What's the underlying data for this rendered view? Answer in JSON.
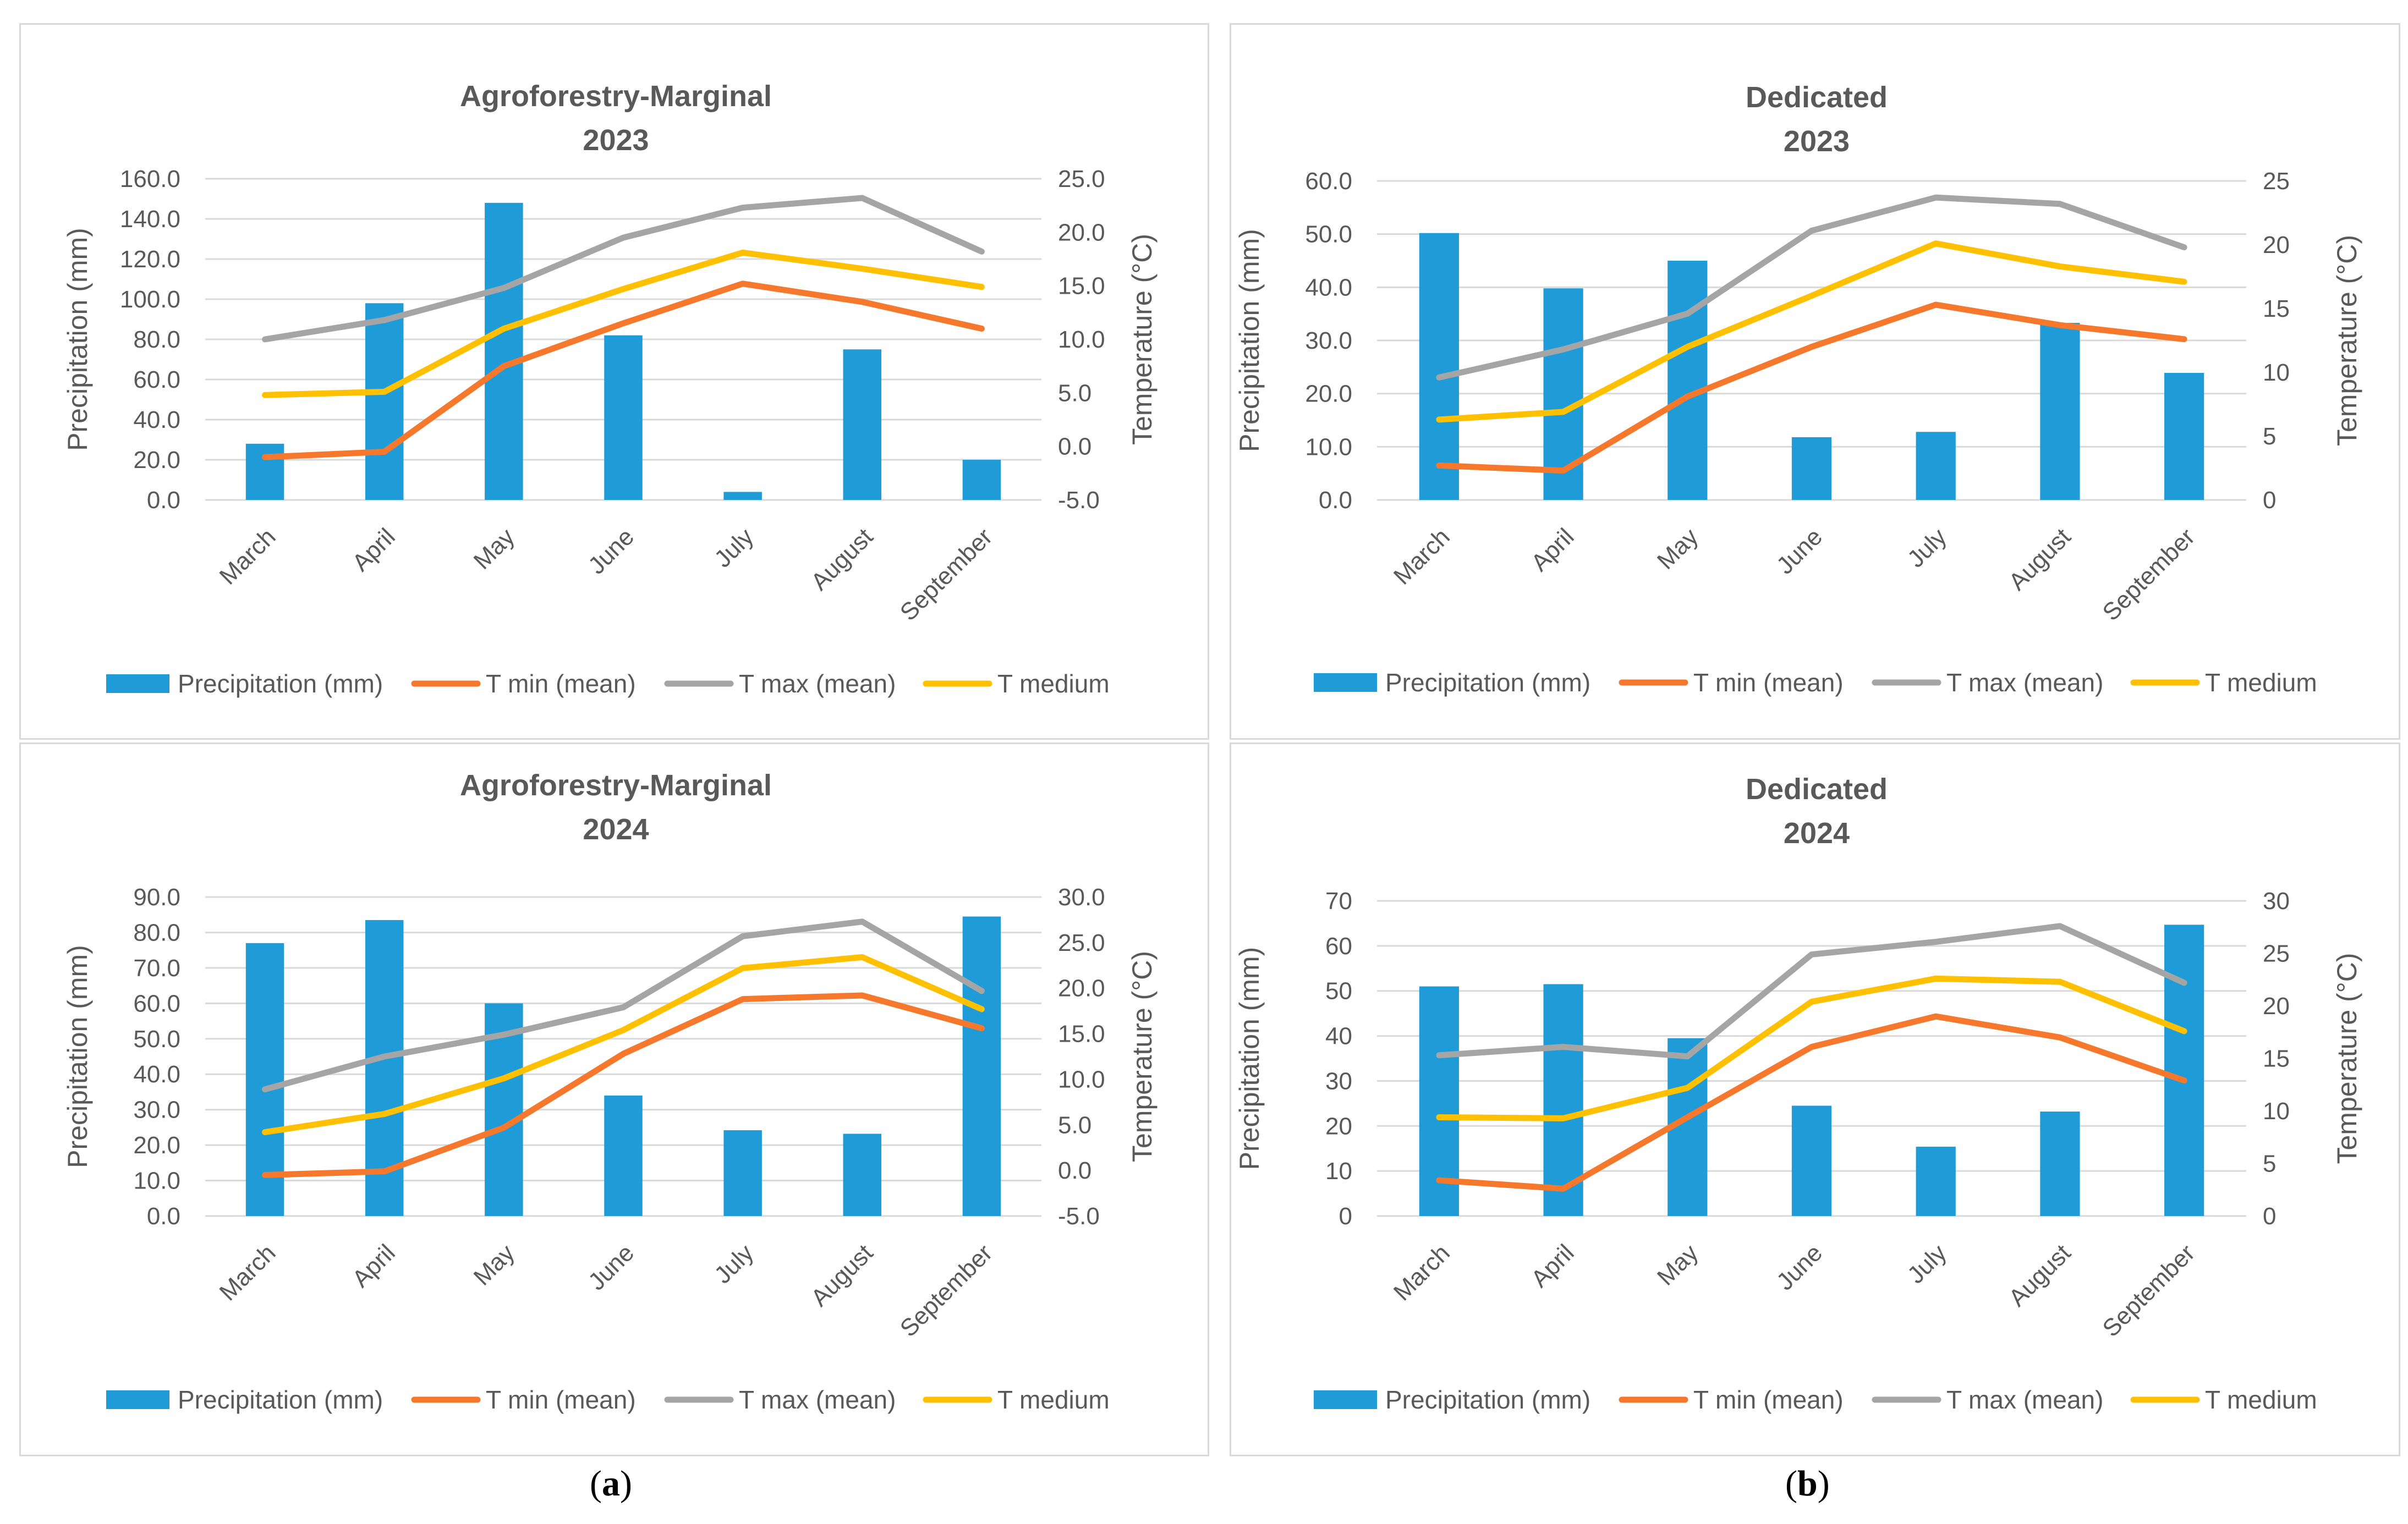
{
  "colors": {
    "precipitation": "#1f9bd7",
    "tmin": "#f5782d",
    "tmax": "#a5a5a5",
    "tmed": "#ffc000",
    "grid": "#d9d9d9",
    "text": "#595959"
  },
  "captions": {
    "a": "a",
    "b": "b"
  },
  "chart_data": [
    {
      "id": "agro-2023",
      "type": "bar+line",
      "title": "Agroforestry-Marginal",
      "subtitle": "2023",
      "categories": [
        "March",
        "April",
        "May",
        "June",
        "July",
        "August",
        "September"
      ],
      "ylabel": "Precipitation (mm)",
      "y2label": "Temperature (°C)",
      "ylim": [
        0,
        160
      ],
      "yticks": [
        "0.0",
        "20.0",
        "40.0",
        "60.0",
        "80.0",
        "100.0",
        "120.0",
        "140.0",
        "160.0"
      ],
      "y2lim": [
        -5,
        25
      ],
      "y2ticks": [
        "-5.0",
        "0.0",
        "5.0",
        "10.0",
        "15.0",
        "20.0",
        "25.0"
      ],
      "bars": {
        "name": "Precipitation (mm)",
        "values": [
          28,
          98,
          148,
          82,
          4,
          75,
          20
        ]
      },
      "series": [
        {
          "name": "T min (mean)",
          "key": "tmin",
          "values": [
            -1.0,
            -0.5,
            7.5,
            11.5,
            15.2,
            13.5,
            11.0
          ]
        },
        {
          "name": "T max (mean)",
          "key": "tmax",
          "values": [
            10.0,
            11.8,
            14.8,
            19.5,
            22.3,
            23.2,
            18.2
          ]
        },
        {
          "name": "T medium",
          "key": "tmed",
          "values": [
            4.8,
            5.1,
            11.0,
            14.7,
            18.1,
            16.6,
            14.9
          ]
        }
      ],
      "legend": "bottom"
    },
    {
      "id": "ded-2023",
      "type": "bar+line",
      "title": "Dedicated",
      "subtitle": "2023",
      "categories": [
        "March",
        "April",
        "May",
        "June",
        "July",
        "August",
        "September"
      ],
      "ylabel": "Precipitation (mm)",
      "y2label": "Temperature (°C)",
      "ylim": [
        0,
        60
      ],
      "yticks": [
        "0.0",
        "10.0",
        "20.0",
        "30.0",
        "40.0",
        "50.0",
        "60.0"
      ],
      "y2lim": [
        0,
        25
      ],
      "y2ticks": [
        "0",
        "5",
        "10",
        "15",
        "20",
        "25"
      ],
      "bars": {
        "name": "Precipitation (mm)",
        "values": [
          50.2,
          39.8,
          45.0,
          11.8,
          12.8,
          33.3,
          23.9
        ]
      },
      "series": [
        {
          "name": "T min (mean)",
          "key": "tmin",
          "values": [
            2.7,
            2.3,
            8.1,
            12.0,
            15.3,
            13.7,
            12.6
          ]
        },
        {
          "name": "T max (mean)",
          "key": "tmax",
          "values": [
            9.6,
            11.8,
            14.6,
            21.1,
            23.7,
            23.2,
            19.8
          ]
        },
        {
          "name": "T medium",
          "key": "tmed",
          "values": [
            6.3,
            6.9,
            12.0,
            16.0,
            20.1,
            18.3,
            17.1
          ]
        }
      ],
      "legend": "bottom"
    },
    {
      "id": "agro-2024",
      "type": "bar+line",
      "title": "Agroforestry-Marginal",
      "subtitle": "2024",
      "categories": [
        "March",
        "April",
        "May",
        "June",
        "July",
        "August",
        "September"
      ],
      "ylabel": "Precipitation (mm)",
      "y2label": "Temperature (°C)",
      "ylim": [
        0,
        90
      ],
      "yticks": [
        "0.0",
        "10.0",
        "20.0",
        "30.0",
        "40.0",
        "50.0",
        "60.0",
        "70.0",
        "80.0",
        "90.0"
      ],
      "y2lim": [
        -5,
        30
      ],
      "y2ticks": [
        "-5.0",
        "0.0",
        "5.0",
        "10.0",
        "15.0",
        "20.0",
        "25.0",
        "30.0"
      ],
      "bars": {
        "name": "Precipitation (mm)",
        "values": [
          77,
          83.5,
          60,
          34,
          24.2,
          23.2,
          84.5
        ]
      },
      "series": [
        {
          "name": "T min (mean)",
          "key": "tmin",
          "values": [
            -0.5,
            -0.1,
            4.7,
            12.8,
            18.8,
            19.2,
            15.6
          ]
        },
        {
          "name": "T max (mean)",
          "key": "tmax",
          "values": [
            8.9,
            12.5,
            14.9,
            17.9,
            25.7,
            27.3,
            19.7
          ]
        },
        {
          "name": "T medium",
          "key": "tmed",
          "values": [
            4.2,
            6.2,
            10.1,
            15.4,
            22.2,
            23.4,
            17.7
          ]
        }
      ],
      "legend": "bottom"
    },
    {
      "id": "ded-2024",
      "type": "bar+line",
      "title": "Dedicated",
      "subtitle": "2024",
      "categories": [
        "March",
        "April",
        "May",
        "June",
        "July",
        "August",
        "September"
      ],
      "ylabel": "Precipitation (mm)",
      "y2label": "Temperature (°C)",
      "ylim": [
        0,
        70
      ],
      "yticks": [
        "0",
        "10",
        "20",
        "30",
        "40",
        "50",
        "60",
        "70"
      ],
      "y2lim": [
        0,
        30
      ],
      "y2ticks": [
        "0",
        "5",
        "10",
        "15",
        "20",
        "25",
        "30"
      ],
      "bars": {
        "name": "Precipitation (mm)",
        "values": [
          51,
          51.5,
          39.5,
          24.5,
          15.4,
          23.2,
          64.7
        ]
      },
      "series": [
        {
          "name": "T min (mean)",
          "key": "tmin",
          "values": [
            3.4,
            2.6,
            9.4,
            16.1,
            19.0,
            17.0,
            12.9
          ]
        },
        {
          "name": "T max (mean)",
          "key": "tmax",
          "values": [
            15.3,
            16.1,
            15.2,
            24.9,
            26.1,
            27.6,
            22.2
          ]
        },
        {
          "name": "T medium",
          "key": "tmed",
          "values": [
            9.4,
            9.3,
            12.2,
            20.4,
            22.6,
            22.3,
            17.6
          ]
        }
      ],
      "legend": "bottom"
    }
  ]
}
